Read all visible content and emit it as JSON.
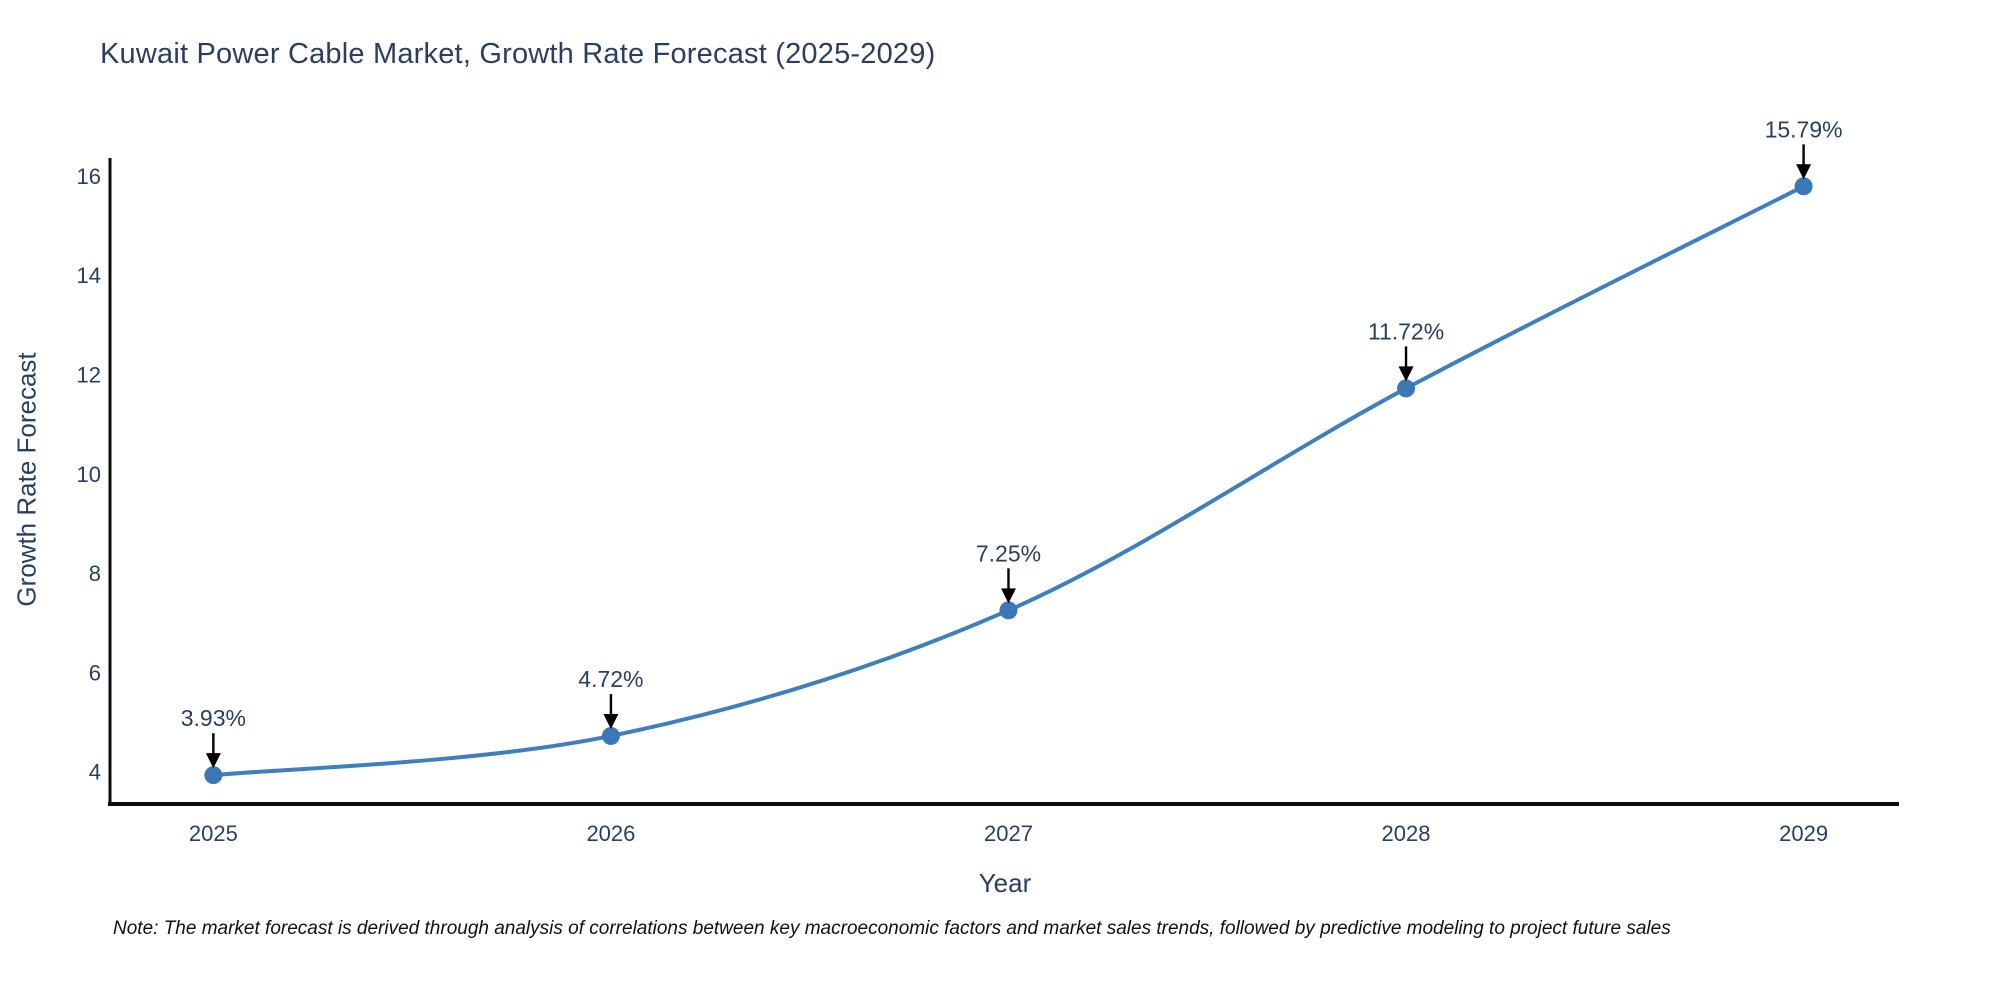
{
  "note": "Note: The market forecast is derived through analysis of correlations between key macroeconomic factors and market sales trends, followed by predictive modeling to project future sales",
  "chart_data": {
    "type": "line",
    "title": "Kuwait Power Cable Market, Growth Rate Forecast (2025-2029)",
    "xlabel": "Year",
    "ylabel": "Growth Rate Forecast",
    "x": [
      2025,
      2026,
      2027,
      2028,
      2029
    ],
    "values": [
      3.93,
      4.72,
      7.25,
      11.72,
      15.79
    ],
    "point_labels": [
      "3.93%",
      "4.72%",
      "7.25%",
      "11.72%",
      "15.79%"
    ],
    "x_ticks": [
      "2025",
      "2026",
      "2027",
      "2028",
      "2029"
    ],
    "y_ticks": [
      4,
      6,
      8,
      10,
      12,
      14,
      16
    ],
    "xlim": [
      2024.74,
      2029.24
    ],
    "ylim": [
      3.39,
      16.36
    ],
    "grid": false,
    "legend": "none",
    "line_shape": "spline",
    "line_color": "#3f7fbd",
    "marker_color": "#3a78b5",
    "axis_line_color": "#0d0d0d",
    "text_color": "#2a3f5f",
    "annotation_arrow_color": "#000000"
  }
}
